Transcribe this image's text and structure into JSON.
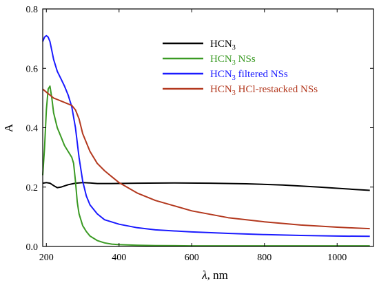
{
  "chart_data": {
    "type": "line",
    "title": "",
    "xlabel": {
      "var": "λ",
      "unit": ", nm"
    },
    "ylabel": "A",
    "xlim": [
      190,
      1100
    ],
    "ylim": [
      0,
      0.8
    ],
    "xticks": [
      200,
      400,
      600,
      800,
      1000
    ],
    "yticks": [
      0.0,
      0.2,
      0.4,
      0.6,
      0.8
    ],
    "xtick_labels": [
      "200",
      "400",
      "600",
      "800",
      "1000"
    ],
    "ytick_labels": [
      "0.0",
      "0.2",
      "0.4",
      "0.6",
      "0.8"
    ],
    "grid": false,
    "legend_position": "top-right",
    "series": [
      {
        "name": "HCN3",
        "legend": {
          "prefix": "HCN",
          "sub": "3",
          "suffix": ""
        },
        "color": "#000000",
        "x": [
          190,
          200,
          210,
          220,
          230,
          240,
          260,
          280,
          300,
          320,
          340,
          380,
          450,
          550,
          650,
          750,
          850,
          950,
          1000,
          1050,
          1090
        ],
        "y": [
          0.213,
          0.215,
          0.213,
          0.205,
          0.198,
          0.2,
          0.208,
          0.213,
          0.215,
          0.214,
          0.212,
          0.212,
          0.213,
          0.214,
          0.213,
          0.211,
          0.207,
          0.2,
          0.196,
          0.192,
          0.189
        ]
      },
      {
        "name": "HCN3 NSs",
        "legend": {
          "prefix": "HCN",
          "sub": "3",
          "suffix": " NSs"
        },
        "color": "#3a9a23",
        "x": [
          190,
          195,
          200,
          205,
          210,
          215,
          220,
          230,
          240,
          250,
          260,
          270,
          275,
          280,
          285,
          290,
          300,
          310,
          320,
          340,
          360,
          380,
          400,
          450,
          500,
          600,
          800,
          1000,
          1090
        ],
        "y": [
          0.24,
          0.33,
          0.46,
          0.53,
          0.54,
          0.5,
          0.45,
          0.4,
          0.37,
          0.34,
          0.32,
          0.3,
          0.28,
          0.22,
          0.15,
          0.11,
          0.07,
          0.05,
          0.035,
          0.02,
          0.012,
          0.008,
          0.006,
          0.004,
          0.003,
          0.002,
          0.002,
          0.002,
          0.002
        ]
      },
      {
        "name": "HCN3 filtered NSs",
        "legend": {
          "prefix": "HCN",
          "sub": "3",
          "suffix": " filtered NSs"
        },
        "color": "#1a1aff",
        "x": [
          190,
          195,
          200,
          205,
          210,
          215,
          220,
          230,
          240,
          250,
          260,
          270,
          280,
          290,
          300,
          310,
          320,
          340,
          360,
          400,
          450,
          500,
          600,
          700,
          800,
          900,
          1000,
          1090
        ],
        "y": [
          0.69,
          0.705,
          0.71,
          0.705,
          0.69,
          0.66,
          0.63,
          0.59,
          0.565,
          0.54,
          0.51,
          0.47,
          0.4,
          0.3,
          0.22,
          0.17,
          0.14,
          0.11,
          0.09,
          0.075,
          0.063,
          0.056,
          0.049,
          0.044,
          0.04,
          0.037,
          0.035,
          0.034
        ]
      },
      {
        "name": "HCN3 HCl-restacked NSs",
        "legend": {
          "prefix": "HCN",
          "sub": "3",
          "suffix": " HCl-restacked NSs"
        },
        "color": "#b3381e",
        "x": [
          190,
          200,
          210,
          220,
          230,
          240,
          250,
          260,
          270,
          280,
          290,
          300,
          320,
          340,
          360,
          380,
          400,
          450,
          500,
          600,
          700,
          800,
          900,
          1000,
          1050,
          1090
        ],
        "y": [
          0.53,
          0.52,
          0.51,
          0.5,
          0.495,
          0.49,
          0.485,
          0.48,
          0.475,
          0.46,
          0.43,
          0.38,
          0.32,
          0.28,
          0.255,
          0.235,
          0.215,
          0.18,
          0.155,
          0.12,
          0.097,
          0.083,
          0.072,
          0.065,
          0.062,
          0.06
        ]
      }
    ]
  }
}
